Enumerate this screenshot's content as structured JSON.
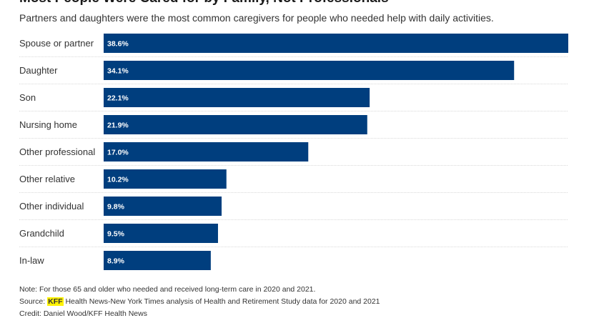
{
  "header": {
    "title": "Most People Were Cared for by Family, Not Professionals",
    "subtitle": "Partners and daughters were the most common caregivers for people who needed help with daily activities."
  },
  "chart_data": {
    "type": "bar",
    "orientation": "horizontal",
    "categories": [
      "Spouse or partner",
      "Daughter",
      "Son",
      "Nursing home",
      "Other professional",
      "Other relative",
      "Other individual",
      "Grandchild",
      "In-law"
    ],
    "values": [
      38.6,
      34.1,
      22.1,
      21.9,
      17.0,
      10.2,
      9.8,
      9.5,
      8.9
    ],
    "value_labels": [
      "38.6%",
      "34.1%",
      "22.1%",
      "21.9%",
      "17.0%",
      "10.2%",
      "9.8%",
      "9.5%",
      "8.9%"
    ],
    "xlim": [
      0,
      38.6
    ],
    "bar_color": "#003e7e",
    "grid": false
  },
  "footer": {
    "note": "Note: For those 65 and older who needed and received long-term care in 2020 and 2021.",
    "source_prefix": "Source: ",
    "source_highlight": "KFF",
    "source_rest": " Health News-New York Times analysis of Health and Retirement Study data for 2020 and 2021",
    "credit": "Credit: Daniel Wood/KFF Health News"
  },
  "colors": {
    "bar": "#003e7e",
    "highlight": "#fff200",
    "separator": "#d9d9d9"
  }
}
